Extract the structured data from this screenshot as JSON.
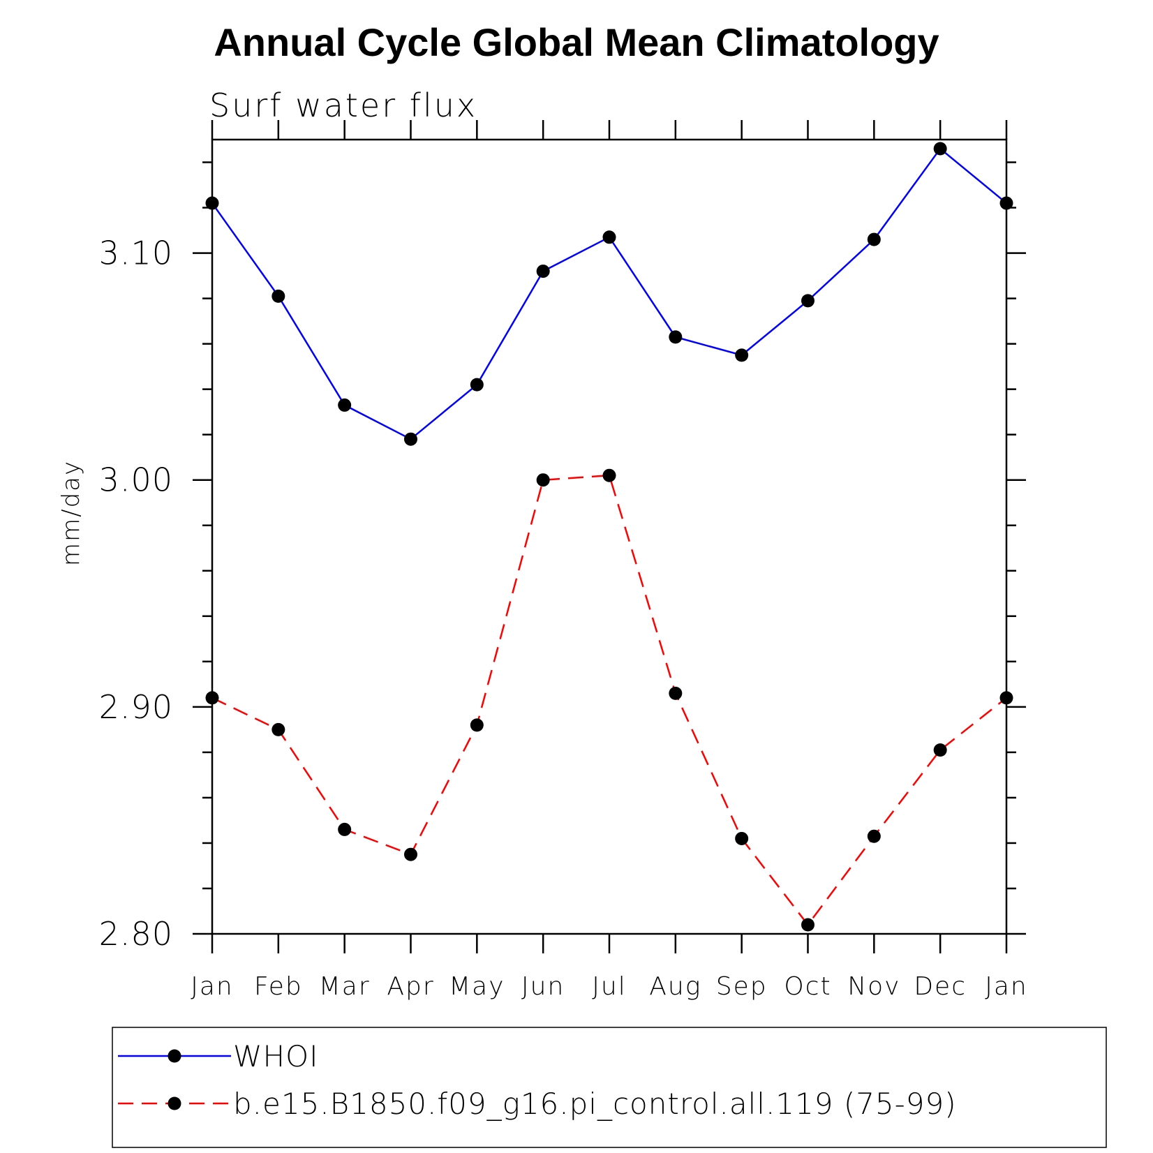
{
  "chart_data": {
    "type": "line",
    "title": "Annual Cycle Global Mean Climatology",
    "subtitle": "Surf water flux",
    "ylabel": "mm/day",
    "xlabel": "",
    "categories": [
      "Jan",
      "Feb",
      "Mar",
      "Apr",
      "May",
      "Jun",
      "Jul",
      "Aug",
      "Sep",
      "Oct",
      "Nov",
      "Dec",
      "Jan"
    ],
    "ylim": [
      2.8,
      3.15
    ],
    "yticks": [
      "2.80",
      "2.90",
      "3.00",
      "3.10"
    ],
    "grid": false,
    "legend_position": "bottom",
    "series": [
      {
        "name": "WHOI",
        "color": "#0000ff",
        "line_style": "solid",
        "marker": "filled-circle",
        "values": [
          3.122,
          3.081,
          3.033,
          3.018,
          3.042,
          3.092,
          3.107,
          3.063,
          3.055,
          3.079,
          3.106,
          3.146,
          3.122
        ]
      },
      {
        "name": "b.e15.B1850.f09_g16.pi_control.all.119 (75-99)",
        "color": "#ff0000",
        "line_style": "dashed",
        "marker": "filled-circle",
        "values": [
          2.904,
          2.89,
          2.846,
          2.835,
          2.892,
          3.0,
          3.002,
          2.906,
          2.842,
          2.804,
          2.843,
          2.881,
          2.904
        ]
      }
    ]
  }
}
